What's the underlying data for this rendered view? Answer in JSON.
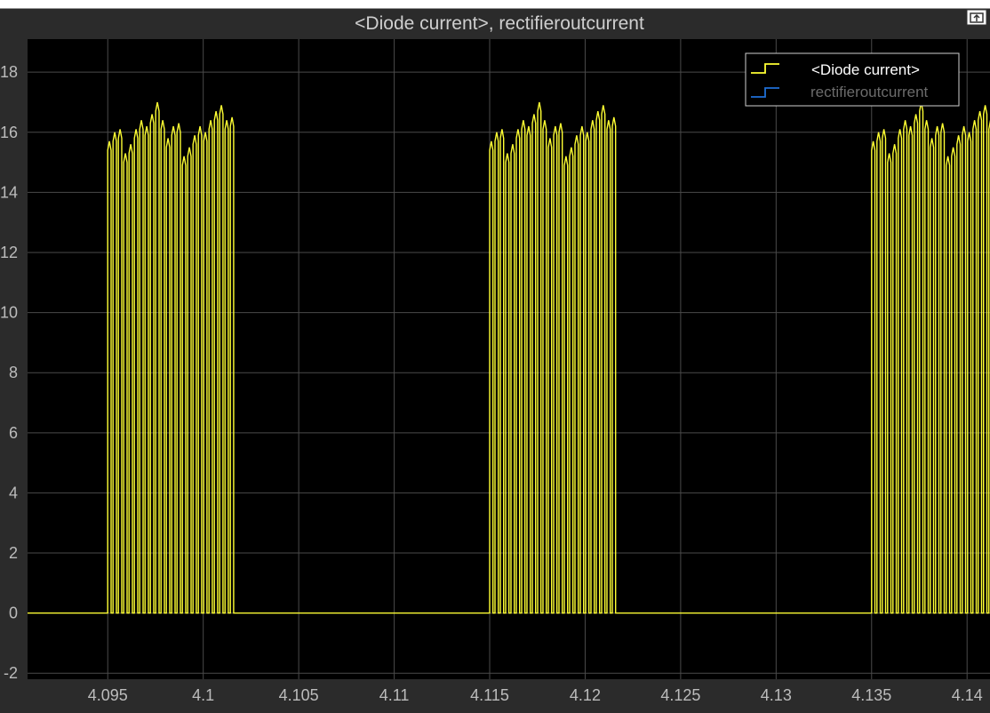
{
  "window": {
    "title": "<Diode current>, rectifieroutcurrent",
    "undock_icon": "undock-icon"
  },
  "colors": {
    "background": "#2b2b2b",
    "plot_background": "#000000",
    "grid": "#4a4a4a",
    "tick_label": "#bcbcbc",
    "series_diode": "#ffff33",
    "series_rectifier": "#1f6fd6"
  },
  "chart_data": {
    "type": "line",
    "title": "<Diode current>, rectifieroutcurrent",
    "xlabel": "",
    "ylabel": "",
    "xlim": [
      4.0908,
      4.1412
    ],
    "ylim": [
      -2.2,
      19.1
    ],
    "xticks": [
      4.095,
      4.1,
      4.105,
      4.11,
      4.115,
      4.12,
      4.125,
      4.13,
      4.135,
      4.14
    ],
    "xtick_labels": [
      "4.095",
      "4.1",
      "4.105",
      "4.11",
      "4.115",
      "4.12",
      "4.125",
      "4.13",
      "4.135",
      "4.14"
    ],
    "yticks": [
      -2,
      0,
      2,
      4,
      6,
      8,
      10,
      12,
      14,
      16,
      18
    ],
    "ytick_labels": [
      "-2",
      "0",
      "2",
      "4",
      "6",
      "8",
      "10",
      "12",
      "14",
      "16",
      "18"
    ],
    "grid": true,
    "legend_position": "top-right",
    "series": [
      {
        "name": "<Diode current>",
        "color": "#ffff33",
        "baseline": 0,
        "pulse_bursts": [
          {
            "start": 4.095,
            "end": 4.1017
          },
          {
            "start": 4.115,
            "end": 4.1217
          },
          {
            "start": 4.135,
            "end": 4.1417
          }
        ],
        "pulses_per_burst": 24,
        "peak_range": [
          15.2,
          17.0
        ],
        "peak_profile": [
          15.7,
          16.0,
          16.1,
          15.3,
          15.6,
          16.1,
          16.4,
          16.2,
          16.6,
          17.0,
          16.4,
          15.8,
          16.2,
          16.3,
          15.2,
          15.5,
          15.9,
          16.2,
          16.0,
          16.4,
          16.7,
          16.9,
          16.4,
          16.5
        ]
      },
      {
        "name": "rectifieroutcurrent",
        "color": "#1f6fd6"
      }
    ]
  }
}
